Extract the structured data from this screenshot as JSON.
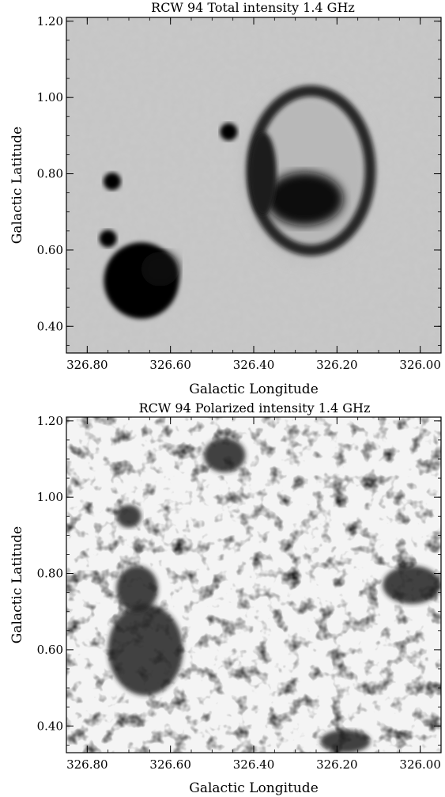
{
  "chart_data": [
    {
      "type": "heatmap",
      "title": "RCW 94 Total intensity 1.4 GHz",
      "xlabel": "Galactic Longitude",
      "ylabel": "Galactic Latitude",
      "xlim": [
        326.85,
        325.95
      ],
      "ylim": [
        0.33,
        1.21
      ],
      "x_ticks": [
        326.8,
        326.6,
        326.4,
        326.2,
        326.0
      ],
      "x_tick_labels": [
        "326.80",
        "326.60",
        "326.40",
        "326.20",
        "326.00"
      ],
      "y_ticks": [
        0.4,
        0.6,
        0.8,
        1.0,
        1.2
      ],
      "y_tick_labels": [
        "0.40",
        "0.60",
        "0.80",
        "1.00",
        "1.20"
      ],
      "colormap": "greyscale",
      "background_color": "#c9c9c9",
      "features": [
        {
          "kind": "shell",
          "l": 326.27,
          "b": 0.8,
          "width_deg": 0.3,
          "height_deg": 0.44
        },
        {
          "kind": "compact-source",
          "l": 326.46,
          "b": 0.91
        },
        {
          "kind": "compact-source",
          "l": 326.74,
          "b": 0.78
        },
        {
          "kind": "compact-source",
          "l": 326.75,
          "b": 0.63
        },
        {
          "kind": "bright-region",
          "l": 326.67,
          "b": 0.52,
          "width_deg": 0.18,
          "height_deg": 0.2
        }
      ]
    },
    {
      "type": "heatmap",
      "title": "RCW 94 Polarized intensity 1.4 GHz",
      "xlabel": "Galactic Longitude",
      "ylabel": "Galactic Latitude",
      "xlim": [
        326.85,
        325.95
      ],
      "ylim": [
        0.33,
        1.21
      ],
      "x_ticks": [
        326.8,
        326.6,
        326.4,
        326.2,
        326.0
      ],
      "x_tick_labels": [
        "326.80",
        "326.60",
        "326.40",
        "326.20",
        "326.00"
      ],
      "y_ticks": [
        0.4,
        0.6,
        0.8,
        1.0,
        1.2
      ],
      "y_tick_labels": [
        "0.40",
        "0.60",
        "0.80",
        "1.00",
        "1.20"
      ],
      "colormap": "greyscale",
      "background_color": "#f4f4f4",
      "features": [
        {
          "kind": "polarized-patch",
          "l": 326.66,
          "b": 0.6,
          "width_deg": 0.18,
          "height_deg": 0.24
        },
        {
          "kind": "polarized-patch",
          "l": 326.68,
          "b": 0.76,
          "width_deg": 0.1,
          "height_deg": 0.12
        },
        {
          "kind": "polarized-patch",
          "l": 326.7,
          "b": 0.95,
          "width_deg": 0.06,
          "height_deg": 0.06
        },
        {
          "kind": "polarized-patch",
          "l": 326.02,
          "b": 0.77,
          "width_deg": 0.14,
          "height_deg": 0.1
        },
        {
          "kind": "polarized-patch",
          "l": 326.18,
          "b": 0.36,
          "width_deg": 0.12,
          "height_deg": 0.06
        },
        {
          "kind": "polarized-patch",
          "l": 326.47,
          "b": 1.11,
          "width_deg": 0.1,
          "height_deg": 0.09
        }
      ]
    }
  ]
}
